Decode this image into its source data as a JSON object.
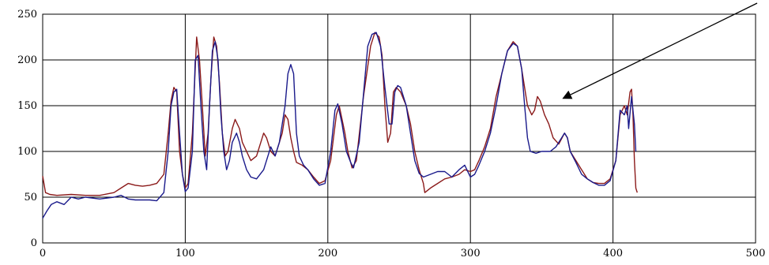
{
  "chart_data": {
    "type": "line",
    "title": "",
    "xlabel": "",
    "ylabel": "",
    "xlim": [
      0,
      500
    ],
    "ylim": [
      0,
      250
    ],
    "x_ticks": [
      0,
      100,
      200,
      300,
      400,
      500
    ],
    "y_ticks": [
      0,
      50,
      100,
      150,
      200,
      250
    ],
    "x_tick_labels": [
      "0",
      "100",
      "200",
      "300",
      "400",
      "500"
    ],
    "y_tick_labels": [
      "0",
      "50",
      "100",
      "150",
      "200",
      "250"
    ],
    "grid": true,
    "legend": "none",
    "annotation": {
      "type": "arrow",
      "points_to": [
        365,
        158
      ]
    },
    "series": [
      {
        "color": "#8b1a1a",
        "points": [
          [
            0,
            73
          ],
          [
            2,
            55
          ],
          [
            5,
            53
          ],
          [
            10,
            52
          ],
          [
            20,
            53
          ],
          [
            30,
            52
          ],
          [
            40,
            52
          ],
          [
            50,
            55
          ],
          [
            55,
            60
          ],
          [
            60,
            65
          ],
          [
            65,
            63
          ],
          [
            70,
            62
          ],
          [
            75,
            63
          ],
          [
            80,
            65
          ],
          [
            85,
            75
          ],
          [
            88,
            120
          ],
          [
            90,
            155
          ],
          [
            92,
            170
          ],
          [
            94,
            165
          ],
          [
            96,
            100
          ],
          [
            98,
            75
          ],
          [
            100,
            60
          ],
          [
            102,
            65
          ],
          [
            105,
            120
          ],
          [
            108,
            225
          ],
          [
            110,
            200
          ],
          [
            112,
            150
          ],
          [
            114,
            95
          ],
          [
            116,
            120
          ],
          [
            118,
            180
          ],
          [
            120,
            225
          ],
          [
            122,
            215
          ],
          [
            124,
            175
          ],
          [
            126,
            120
          ],
          [
            128,
            95
          ],
          [
            130,
            100
          ],
          [
            133,
            125
          ],
          [
            135,
            135
          ],
          [
            138,
            125
          ],
          [
            140,
            110
          ],
          [
            143,
            100
          ],
          [
            146,
            90
          ],
          [
            150,
            95
          ],
          [
            153,
            110
          ],
          [
            155,
            120
          ],
          [
            157,
            115
          ],
          [
            160,
            100
          ],
          [
            163,
            95
          ],
          [
            166,
            110
          ],
          [
            168,
            120
          ],
          [
            170,
            140
          ],
          [
            172,
            135
          ],
          [
            174,
            115
          ],
          [
            176,
            100
          ],
          [
            178,
            88
          ],
          [
            182,
            85
          ],
          [
            186,
            80
          ],
          [
            190,
            72
          ],
          [
            194,
            65
          ],
          [
            198,
            68
          ],
          [
            202,
            90
          ],
          [
            206,
            140
          ],
          [
            208,
            150
          ],
          [
            212,
            120
          ],
          [
            214,
            100
          ],
          [
            217,
            82
          ],
          [
            220,
            90
          ],
          [
            225,
            160
          ],
          [
            230,
            215
          ],
          [
            233,
            230
          ],
          [
            236,
            225
          ],
          [
            238,
            205
          ],
          [
            240,
            150
          ],
          [
            242,
            110
          ],
          [
            244,
            120
          ],
          [
            246,
            165
          ],
          [
            248,
            170
          ],
          [
            251,
            165
          ],
          [
            255,
            150
          ],
          [
            258,
            130
          ],
          [
            261,
            100
          ],
          [
            264,
            80
          ],
          [
            267,
            65
          ],
          [
            268,
            55
          ],
          [
            272,
            60
          ],
          [
            277,
            65
          ],
          [
            282,
            70
          ],
          [
            287,
            72
          ],
          [
            292,
            75
          ],
          [
            296,
            80
          ],
          [
            300,
            78
          ],
          [
            303,
            80
          ],
          [
            306,
            90
          ],
          [
            310,
            105
          ],
          [
            314,
            125
          ],
          [
            318,
            160
          ],
          [
            322,
            185
          ],
          [
            326,
            210
          ],
          [
            330,
            220
          ],
          [
            333,
            215
          ],
          [
            336,
            190
          ],
          [
            340,
            150
          ],
          [
            343,
            140
          ],
          [
            345,
            145
          ],
          [
            347,
            160
          ],
          [
            349,
            155
          ],
          [
            352,
            140
          ],
          [
            355,
            130
          ],
          [
            358,
            115
          ],
          [
            362,
            108
          ],
          [
            366,
            120
          ],
          [
            368,
            115
          ],
          [
            370,
            100
          ],
          [
            374,
            90
          ],
          [
            378,
            80
          ],
          [
            382,
            70
          ],
          [
            386,
            66
          ],
          [
            390,
            65
          ],
          [
            394,
            65
          ],
          [
            398,
            70
          ],
          [
            402,
            90
          ],
          [
            405,
            140
          ],
          [
            408,
            150
          ],
          [
            410,
            140
          ],
          [
            412,
            165
          ],
          [
            413,
            168
          ],
          [
            414,
            140
          ],
          [
            415,
            90
          ],
          [
            416,
            60
          ],
          [
            417,
            55
          ]
        ]
      },
      {
        "color": "#1a1a8b",
        "points": [
          [
            0,
            27
          ],
          [
            3,
            35
          ],
          [
            6,
            42
          ],
          [
            10,
            45
          ],
          [
            15,
            42
          ],
          [
            20,
            50
          ],
          [
            25,
            48
          ],
          [
            30,
            50
          ],
          [
            40,
            48
          ],
          [
            50,
            50
          ],
          [
            55,
            52
          ],
          [
            60,
            48
          ],
          [
            65,
            47
          ],
          [
            70,
            47
          ],
          [
            75,
            47
          ],
          [
            80,
            46
          ],
          [
            85,
            55
          ],
          [
            88,
            100
          ],
          [
            90,
            150
          ],
          [
            92,
            165
          ],
          [
            94,
            168
          ],
          [
            96,
            120
          ],
          [
            98,
            75
          ],
          [
            100,
            56
          ],
          [
            102,
            60
          ],
          [
            105,
            100
          ],
          [
            107,
            200
          ],
          [
            109,
            205
          ],
          [
            111,
            150
          ],
          [
            113,
            100
          ],
          [
            115,
            80
          ],
          [
            117,
            150
          ],
          [
            119,
            210
          ],
          [
            121,
            220
          ],
          [
            123,
            200
          ],
          [
            125,
            140
          ],
          [
            127,
            100
          ],
          [
            129,
            80
          ],
          [
            131,
            90
          ],
          [
            133,
            110
          ],
          [
            136,
            120
          ],
          [
            138,
            110
          ],
          [
            140,
            95
          ],
          [
            143,
            80
          ],
          [
            146,
            72
          ],
          [
            150,
            70
          ],
          [
            155,
            80
          ],
          [
            160,
            105
          ],
          [
            163,
            95
          ],
          [
            166,
            110
          ],
          [
            170,
            150
          ],
          [
            172,
            185
          ],
          [
            174,
            195
          ],
          [
            176,
            185
          ],
          [
            178,
            120
          ],
          [
            180,
            95
          ],
          [
            183,
            85
          ],
          [
            186,
            80
          ],
          [
            190,
            70
          ],
          [
            194,
            63
          ],
          [
            198,
            65
          ],
          [
            202,
            100
          ],
          [
            205,
            145
          ],
          [
            207,
            152
          ],
          [
            210,
            130
          ],
          [
            213,
            100
          ],
          [
            216,
            88
          ],
          [
            218,
            82
          ],
          [
            222,
            110
          ],
          [
            228,
            215
          ],
          [
            231,
            228
          ],
          [
            234,
            230
          ],
          [
            237,
            215
          ],
          [
            240,
            170
          ],
          [
            243,
            130
          ],
          [
            245,
            130
          ],
          [
            247,
            165
          ],
          [
            249,
            172
          ],
          [
            251,
            170
          ],
          [
            255,
            150
          ],
          [
            258,
            120
          ],
          [
            261,
            90
          ],
          [
            264,
            76
          ],
          [
            267,
            72
          ],
          [
            272,
            75
          ],
          [
            277,
            78
          ],
          [
            282,
            78
          ],
          [
            287,
            72
          ],
          [
            292,
            80
          ],
          [
            296,
            85
          ],
          [
            300,
            72
          ],
          [
            303,
            75
          ],
          [
            306,
            85
          ],
          [
            310,
            100
          ],
          [
            314,
            120
          ],
          [
            318,
            150
          ],
          [
            322,
            185
          ],
          [
            326,
            210
          ],
          [
            330,
            218
          ],
          [
            333,
            215
          ],
          [
            336,
            190
          ],
          [
            338,
            150
          ],
          [
            340,
            115
          ],
          [
            342,
            100
          ],
          [
            346,
            98
          ],
          [
            350,
            100
          ],
          [
            356,
            100
          ],
          [
            360,
            105
          ],
          [
            364,
            115
          ],
          [
            366,
            120
          ],
          [
            368,
            115
          ],
          [
            370,
            100
          ],
          [
            374,
            88
          ],
          [
            378,
            75
          ],
          [
            382,
            70
          ],
          [
            386,
            66
          ],
          [
            390,
            63
          ],
          [
            394,
            63
          ],
          [
            398,
            68
          ],
          [
            402,
            90
          ],
          [
            405,
            145
          ],
          [
            408,
            140
          ],
          [
            410,
            150
          ],
          [
            411,
            125
          ],
          [
            413,
            160
          ],
          [
            415,
            130
          ],
          [
            416,
            100
          ]
        ]
      }
    ]
  }
}
